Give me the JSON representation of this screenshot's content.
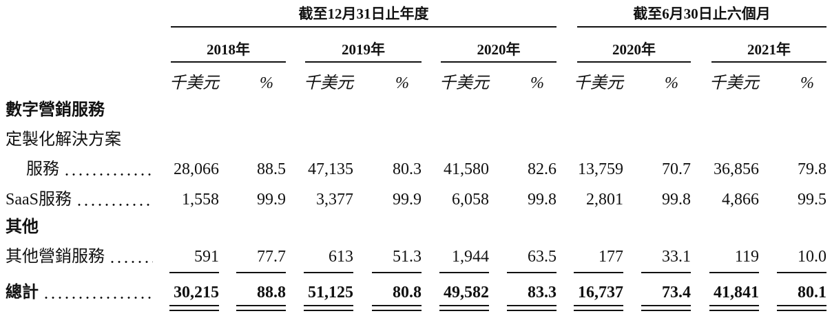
{
  "header": {
    "groups": [
      "截至12月31日止年度",
      "截至6月30日止六個月"
    ],
    "years": [
      "2018年",
      "2019年",
      "2020年",
      "2020年",
      "2021年"
    ],
    "units": [
      "千美元",
      "%"
    ]
  },
  "sections": [
    {
      "title": "數字營銷服務",
      "items": [
        {
          "label": [
            "定製化解決方案",
            "服務"
          ],
          "values": [
            "28,066",
            "88.5",
            "47,135",
            "80.3",
            "41,580",
            "82.6",
            "13,759",
            "70.7",
            "36,856",
            "79.8"
          ]
        },
        {
          "label": [
            "SaaS服務"
          ],
          "values": [
            "1,558",
            "99.9",
            "3,377",
            "99.9",
            "6,058",
            "99.8",
            "2,801",
            "99.8",
            "4,866",
            "99.5"
          ]
        }
      ]
    },
    {
      "title": "其他",
      "items": [
        {
          "label": [
            "其他營銷服務"
          ],
          "values": [
            "591",
            "77.7",
            "613",
            "51.3",
            "1,944",
            "63.5",
            "177",
            "33.1",
            "119",
            "10.0"
          ]
        }
      ]
    }
  ],
  "total": {
    "label": "總計",
    "values": [
      "30,215",
      "88.8",
      "51,125",
      "80.8",
      "49,582",
      "83.3",
      "16,737",
      "73.4",
      "41,841",
      "80.1"
    ]
  }
}
